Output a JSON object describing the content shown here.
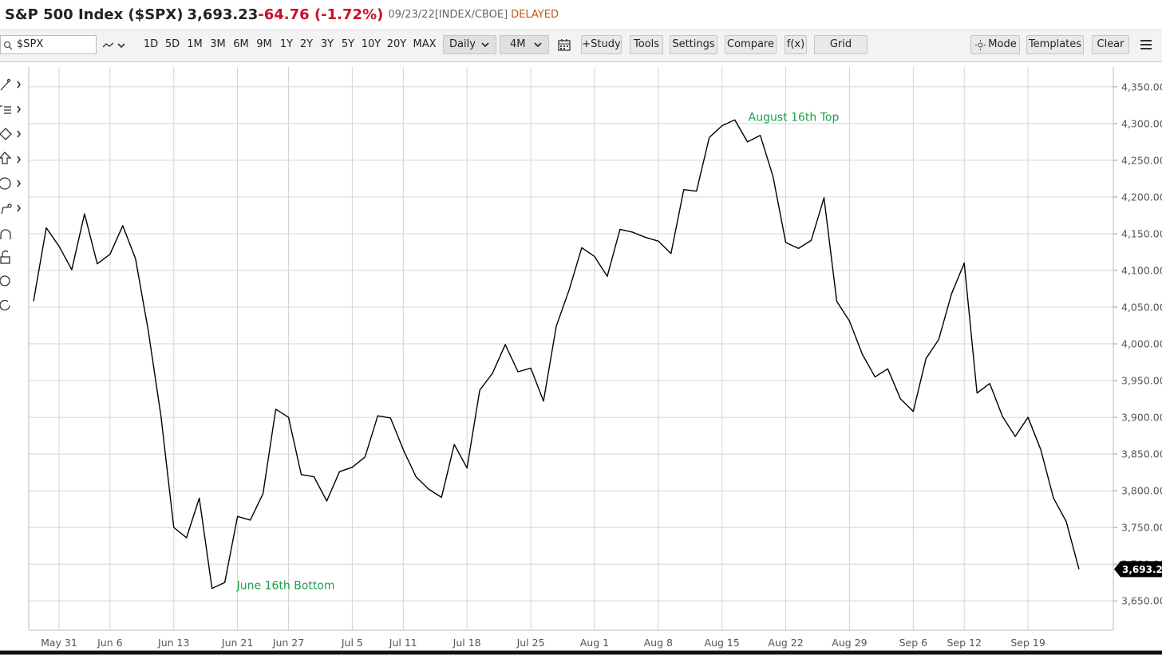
{
  "header": {
    "title": "S&P 500 Index ($SPX)",
    "price": "3,693.23",
    "change": "-64.76 (-1.72%)",
    "meta": "09/23/22[INDEX/CBOE]",
    "status": "DELAYED"
  },
  "toolbar": {
    "symbol": "$SPX",
    "ranges": [
      "1D",
      "5D",
      "1M",
      "3M",
      "6M",
      "9M",
      "1Y",
      "2Y",
      "3Y",
      "5Y",
      "10Y",
      "20Y",
      "MAX"
    ],
    "interval": "Daily",
    "period": "4M",
    "buttons": [
      "+Study",
      "Tools",
      "Settings",
      "Compare",
      "f(x)",
      "Grid"
    ],
    "right_buttons": [
      "Mode",
      "Templates",
      "Clear"
    ]
  },
  "chart_data": {
    "type": "line",
    "color": "#000000",
    "grid": true,
    "categories": [
      null,
      null,
      "May 31",
      null,
      null,
      null,
      "Jun 6",
      null,
      null,
      null,
      null,
      "Jun 13",
      null,
      null,
      null,
      null,
      "Jun 21",
      null,
      null,
      null,
      "Jun 27",
      null,
      null,
      null,
      null,
      "Jul 5",
      null,
      null,
      null,
      "Jul 11",
      null,
      null,
      null,
      null,
      "Jul 18",
      null,
      null,
      null,
      null,
      "Jul 25",
      null,
      null,
      null,
      null,
      "Aug 1",
      null,
      null,
      null,
      null,
      "Aug 8",
      null,
      null,
      null,
      null,
      "Aug 15",
      null,
      null,
      null,
      null,
      "Aug 22",
      null,
      null,
      null,
      null,
      "Aug 29",
      null,
      null,
      null,
      null,
      "Sep 6",
      null,
      null,
      null,
      "Sep 12",
      null,
      null,
      null,
      null,
      "Sep 19",
      null,
      null,
      null,
      null
    ],
    "values": [
      4058,
      4158,
      4133,
      4101,
      4177,
      4109,
      4122,
      4161,
      4116,
      4018,
      3901,
      3750,
      3736,
      3790,
      3667,
      3675,
      3765,
      3760,
      3796,
      3911,
      3900,
      3822,
      3819,
      3786,
      3826,
      3832,
      3846,
      3902,
      3899,
      3856,
      3819,
      3802,
      3791,
      3863,
      3831,
      3937,
      3960,
      3999,
      3962,
      3967,
      3922,
      4024,
      4073,
      4131,
      4119,
      4092,
      4156,
      4152,
      4145,
      4140,
      4123,
      4210,
      4208,
      4281,
      4297,
      4305,
      4275,
      4284,
      4228,
      4138,
      4130,
      4141,
      4199,
      4058,
      4031,
      3986,
      3955,
      3966,
      3925,
      3908,
      3980,
      4006,
      4068,
      4110,
      3933,
      3946,
      3901,
      3874,
      3900,
      3856,
      3790,
      3758,
      3693.23
    ],
    "ylim": [
      3610,
      4377
    ],
    "yticks": [
      {
        "value": 3650,
        "label": "3,650.00"
      },
      {
        "value": 3700,
        "label": "3,700.00"
      },
      {
        "value": 3750,
        "label": "3,750.00"
      },
      {
        "value": 3800,
        "label": "3,800.00"
      },
      {
        "value": 3850,
        "label": "3,850.00"
      },
      {
        "value": 3900,
        "label": "3,900.00"
      },
      {
        "value": 3950,
        "label": "3,950.00"
      },
      {
        "value": 4000,
        "label": "4,000.00"
      },
      {
        "value": 4050,
        "label": "4,050.00"
      },
      {
        "value": 4100,
        "label": "4,100.00"
      },
      {
        "value": 4150,
        "label": "4,150.00"
      },
      {
        "value": 4200,
        "label": "4,200.00"
      },
      {
        "value": 4250,
        "label": "4,250.00"
      },
      {
        "value": 4300,
        "label": "4,300.00"
      },
      {
        "value": 4350,
        "label": "4,350.00"
      }
    ],
    "annotations": {
      "peak": "August 16th Top",
      "trough": "June 16th Bottom"
    },
    "annotation_color": "#1aa14a"
  }
}
